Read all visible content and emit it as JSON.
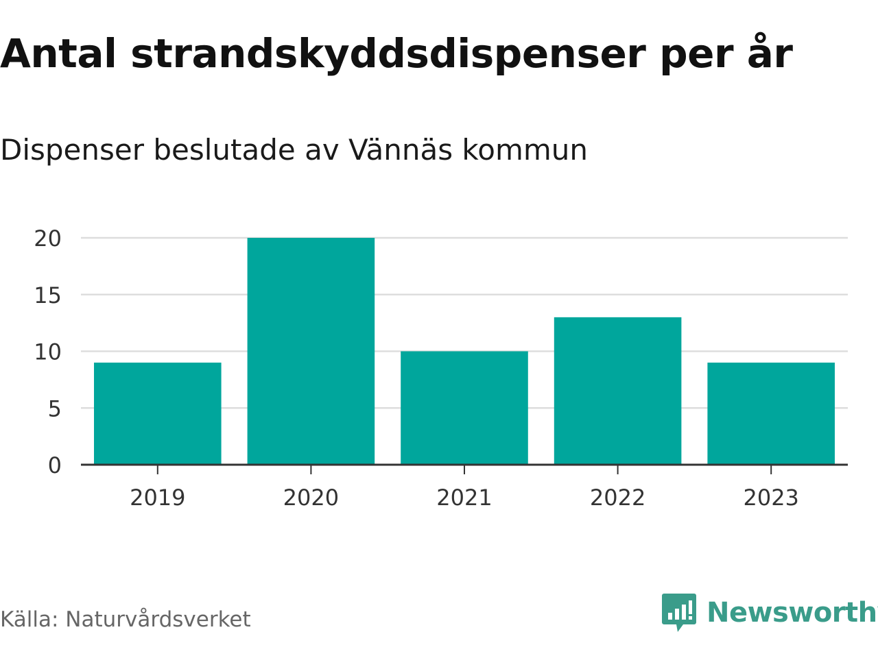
{
  "title": "Antal strandskyddsdispenser per år",
  "subtitle": "Dispenser beslutade av Vännäs kommun",
  "source": "Källa: Naturvårdsverket",
  "brand": {
    "name": "Newsworthy",
    "icon": "newsworthy-logo-icon",
    "color": "#3a9c8a"
  },
  "colors": {
    "bar": "#00a69c",
    "grid": "#dddddd",
    "axis": "#333333"
  },
  "chart_data": {
    "type": "bar",
    "categories": [
      "2019",
      "2020",
      "2021",
      "2022",
      "2023"
    ],
    "values": [
      9,
      20,
      10,
      13,
      9
    ],
    "title": "Antal strandskyddsdispenser per år",
    "subtitle": "Dispenser beslutade av Vännäs kommun",
    "xlabel": "",
    "ylabel": "",
    "ylim": [
      0,
      20
    ],
    "yticks": [
      0,
      5,
      10,
      15,
      20
    ],
    "grid": true
  }
}
